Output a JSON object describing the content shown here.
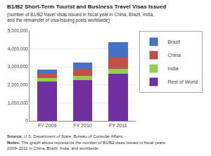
{
  "chart_data": {
    "type": "bar",
    "stacked": true,
    "title": "B1/B2 Short-Term Tourist and Business Travel Visas Issued",
    "subtitle": "(number of B1/B2 travel visas issued in fiscal year in China, Brazil, India,\nand the remainder of visa-issuing posts worldwide)",
    "categories": [
      "FY 2009",
      "FY 2010",
      "FY 2011"
    ],
    "series": [
      {
        "name": "Rest of World",
        "color": "#7030A0",
        "values": [
          2200000,
          2280000,
          2600000
        ]
      },
      {
        "name": "India",
        "color": "#92D050",
        "values": [
          190000,
          210000,
          280000
        ]
      },
      {
        "name": "China",
        "color": "#C0504D",
        "values": [
          270000,
          410000,
          680000
        ]
      },
      {
        "name": "Brazil",
        "color": "#4472C4",
        "values": [
          190000,
          330000,
          820000
        ]
      }
    ],
    "ylim": [
      0,
      5000000
    ],
    "yticks": [
      0,
      {
        "value": 1000000,
        "label": "1,000,000"
      },
      {
        "value": 2000000,
        "label": "2,000,000"
      },
      {
        "value": 3000000,
        "label": "3,000,000"
      },
      {
        "value": 4000000,
        "label": "4,000,000"
      },
      {
        "value": 5000000,
        "label": "5,000,000"
      }
    ],
    "grid": true,
    "legend": "right",
    "annotations": [
      "Source: U.S. Department of State; Bureau of Consular Affairs.",
      "Notes: The graph above represents the number of B1/B2 visas issued in fiscal years\n2009–2011 in China, Brazil, India, and worldwide."
    ]
  }
}
